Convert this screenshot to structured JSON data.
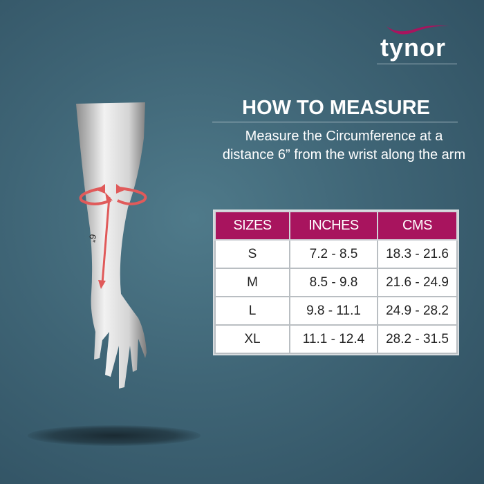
{
  "brand": {
    "name": "tynor",
    "accent": "#a8145e"
  },
  "heading": {
    "title": "HOW TO MEASURE",
    "description_line1": "Measure  the Circumference at a",
    "description_line2": "distance 6” from the wrist along the arm"
  },
  "illustration": {
    "measurement_label": "6”"
  },
  "size_table": {
    "headers": [
      "SIZES",
      "INCHES",
      "CMS"
    ],
    "rows": [
      [
        "S",
        "7.2 - 8.5",
        "18.3 - 21.6"
      ],
      [
        "M",
        "8.5 - 9.8",
        "21.6 - 24.9"
      ],
      [
        "L",
        "9.8 - 11.1",
        "24.9 - 28.2"
      ],
      [
        "XL",
        "11.1 - 12.4",
        "28.2 - 31.5"
      ]
    ]
  }
}
